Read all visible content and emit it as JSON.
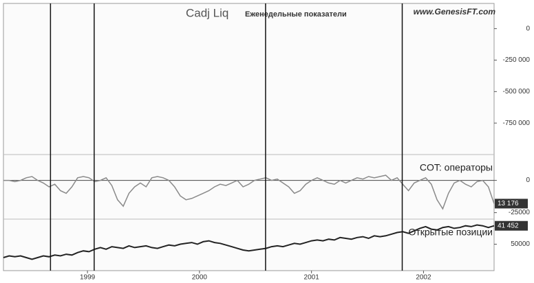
{
  "header": {
    "title": "Cadj Liq",
    "subtitle": "Еженедельные показатели",
    "site": "www.GenesisFT.com"
  },
  "x_axis": {
    "xlim": [
      1998.25,
      2002.63
    ],
    "xticks": [
      1999,
      2000,
      2001,
      2002
    ],
    "vertical_lines": [
      1998.67,
      1999.06,
      2000.59,
      2001.81
    ]
  },
  "chart_data": [
    {
      "type": "line",
      "ylim": [
        -1000000,
        200000
      ],
      "yticks": [
        0,
        {
          "value": -250000,
          "label": "-250 000"
        },
        {
          "value": -500000,
          "label": "-500 000"
        },
        {
          "value": -750000,
          "label": "-750 000"
        }
      ],
      "series": []
    },
    {
      "type": "line",
      "label": "COT: операторы",
      "badge": "13 176",
      "ylim": [
        -30000,
        20000
      ],
      "yticks": [
        0,
        -25000
      ],
      "zero_line": true,
      "series": [
        {
          "color": "#8a8a8a",
          "values": [
            0,
            0,
            -1000,
            0,
            2000,
            3000,
            0,
            -2000,
            -5000,
            -3000,
            -8000,
            -10000,
            -5000,
            2000,
            3000,
            2000,
            -1000,
            0,
            2000,
            -4000,
            -15000,
            -20000,
            -10000,
            -5000,
            -2000,
            -5000,
            2000,
            3000,
            2000,
            0,
            -5000,
            -12000,
            -15000,
            -14000,
            -12000,
            -10000,
            -8000,
            -5000,
            -3000,
            -4000,
            -2000,
            0,
            -5000,
            -3000,
            0,
            1000,
            2000,
            0,
            1000,
            -2000,
            -5000,
            -10000,
            -8000,
            -3000,
            0,
            2000,
            0,
            -2000,
            -3000,
            0,
            -2000,
            0,
            2000,
            1000,
            3000,
            2000,
            3000,
            4000,
            0,
            2000,
            -3000,
            -8000,
            -2000,
            0,
            2000,
            -3000,
            -15000,
            -22000,
            -10000,
            -2000,
            0,
            -3000,
            -5000,
            -1000,
            0,
            -5000,
            -18000
          ]
        }
      ]
    },
    {
      "type": "line",
      "label": "Открытые позиции",
      "badge": "41 452",
      "ylim": [
        35000,
        65000
      ],
      "yticks": [
        50000
      ],
      "series": [
        {
          "color": "#222222",
          "values": [
            42000,
            43000,
            42500,
            43000,
            42000,
            41000,
            42000,
            43000,
            42500,
            43500,
            43000,
            44000,
            43500,
            45000,
            46000,
            45500,
            47000,
            48000,
            47000,
            48500,
            48000,
            47500,
            49000,
            48000,
            48500,
            49000,
            48000,
            47500,
            48500,
            49500,
            49000,
            50000,
            50500,
            51000,
            50000,
            51500,
            52000,
            51000,
            50500,
            49500,
            48500,
            47500,
            46500,
            46000,
            46500,
            47000,
            47500,
            48500,
            49000,
            48500,
            49500,
            50500,
            50000,
            51000,
            52000,
            52500,
            52000,
            53000,
            52500,
            54000,
            53500,
            53000,
            54000,
            54500,
            53500,
            55000,
            54500,
            55000,
            56000,
            57000,
            57500,
            56500,
            58000,
            59500,
            60500,
            59000,
            58500,
            60000,
            60500,
            59500,
            60000,
            61000,
            60500,
            61500,
            61000,
            60000,
            61000
          ]
        }
      ]
    }
  ]
}
